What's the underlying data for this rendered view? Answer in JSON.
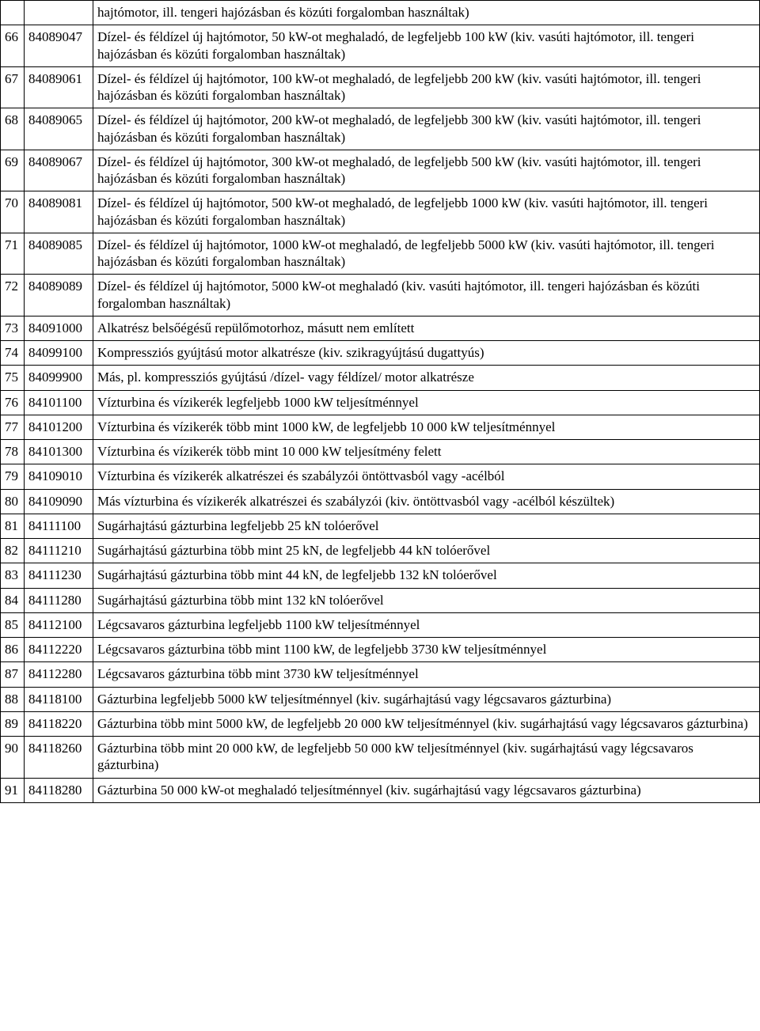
{
  "columns": {
    "width_index": 30,
    "width_code": 87
  },
  "rows": [
    {
      "index": "",
      "code": "",
      "desc": "hajtómotor, ill. tengeri hajózásban és közúti forgalomban használtak)"
    },
    {
      "index": "66",
      "code": "84089047",
      "desc": "Dízel- és féldízel új hajtómotor, 50 kW-ot meghaladó, de legfeljebb 100 kW (kiv. vasúti hajtómotor, ill. tengeri hajózásban és közúti forgalomban használtak)"
    },
    {
      "index": "67",
      "code": "84089061",
      "desc": "Dízel- és féldízel új hajtómotor, 100 kW-ot meghaladó, de legfeljebb 200 kW (kiv. vasúti hajtómotor, ill. tengeri hajózásban és közúti forgalomban használtak)"
    },
    {
      "index": "68",
      "code": "84089065",
      "desc": "Dízel- és féldízel új hajtómotor, 200 kW-ot meghaladó, de legfeljebb 300 kW (kiv. vasúti hajtómotor, ill. tengeri hajózásban és közúti forgalomban használtak)"
    },
    {
      "index": "69",
      "code": "84089067",
      "desc": "Dízel- és féldízel új hajtómotor, 300 kW-ot meghaladó, de legfeljebb 500 kW (kiv. vasúti hajtómotor, ill. tengeri hajózásban és közúti forgalomban használtak)"
    },
    {
      "index": "70",
      "code": "84089081",
      "desc": "Dízel- és féldízel új hajtómotor, 500 kW-ot meghaladó, de legfeljebb 1000 kW (kiv. vasúti hajtómotor, ill. tengeri hajózásban és közúti forgalomban használtak)"
    },
    {
      "index": "71",
      "code": "84089085",
      "desc": "Dízel- és féldízel új hajtómotor, 1000 kW-ot meghaladó, de legfeljebb 5000 kW (kiv. vasúti hajtómotor, ill. tengeri hajózásban és közúti forgalomban használtak)"
    },
    {
      "index": "72",
      "code": "84089089",
      "desc": "Dízel- és féldízel új hajtómotor, 5000 kW-ot meghaladó (kiv. vasúti hajtómotor, ill. tengeri hajózásban és közúti forgalomban használtak)"
    },
    {
      "index": "73",
      "code": "84091000",
      "desc": "Alkatrész belsőégésű repülőmotorhoz, másutt nem említett"
    },
    {
      "index": "74",
      "code": "84099100",
      "desc": "Kompressziós gyújtású motor alkatrésze (kiv. szikragyújtású dugattyús)"
    },
    {
      "index": "75",
      "code": "84099900",
      "desc": "Más, pl. kompressziós gyújtású /dízel- vagy féldízel/ motor alkatrésze"
    },
    {
      "index": "76",
      "code": "84101100",
      "desc": "Vízturbina és vízikerék legfeljebb 1000 kW teljesítménnyel"
    },
    {
      "index": "77",
      "code": "84101200",
      "desc": "Vízturbina és vízikerék több mint 1000 kW, de legfeljebb 10 000 kW teljesítménnyel"
    },
    {
      "index": "78",
      "code": "84101300",
      "desc": "Vízturbina és vízikerék több mint 10 000 kW teljesítmény felett"
    },
    {
      "index": "79",
      "code": "84109010",
      "desc": "Vízturbina és vízikerék alkatrészei és szabályzói öntöttvasból vagy -acélból"
    },
    {
      "index": "80",
      "code": "84109090",
      "desc": "Más vízturbina és vízikerék alkatrészei és szabályzói (kiv. öntöttvasból vagy -acélból készültek)"
    },
    {
      "index": "81",
      "code": "84111100",
      "desc": "Sugárhajtású gázturbina legfeljebb 25 kN tolóerővel"
    },
    {
      "index": "82",
      "code": "84111210",
      "desc": "Sugárhajtású gázturbina több mint 25 kN, de legfeljebb 44 kN tolóerővel"
    },
    {
      "index": "83",
      "code": "84111230",
      "desc": "Sugárhajtású gázturbina több mint 44 kN, de legfeljebb 132 kN tolóerővel"
    },
    {
      "index": "84",
      "code": "84111280",
      "desc": "Sugárhajtású gázturbina több mint 132 kN tolóerővel"
    },
    {
      "index": "85",
      "code": "84112100",
      "desc": "Légcsavaros gázturbina legfeljebb 1100 kW teljesítménnyel"
    },
    {
      "index": "86",
      "code": "84112220",
      "desc": "Légcsavaros gázturbina több mint 1100 kW, de legfeljebb 3730 kW teljesítménnyel"
    },
    {
      "index": "87",
      "code": "84112280",
      "desc": "Légcsavaros gázturbina több mint 3730 kW teljesítménnyel"
    },
    {
      "index": "88",
      "code": "84118100",
      "desc": "Gázturbina legfeljebb 5000 kW teljesítménnyel (kiv. sugárhajtású vagy légcsavaros gázturbina)"
    },
    {
      "index": "89",
      "code": "84118220",
      "desc": "Gázturbina több mint 5000 kW, de legfeljebb 20 000 kW teljesítménnyel (kiv. sugárhajtású vagy légcsavaros gázturbina)"
    },
    {
      "index": "90",
      "code": "84118260",
      "desc": "Gázturbina több mint 20 000 kW, de legfeljebb 50 000 kW teljesítménnyel (kiv. sugárhajtású vagy légcsavaros gázturbina)"
    },
    {
      "index": "91",
      "code": "84118280",
      "desc": "Gázturbina 50 000 kW-ot meghaladó teljesítménnyel (kiv. sugárhajtású vagy légcsavaros gázturbina)"
    }
  ]
}
